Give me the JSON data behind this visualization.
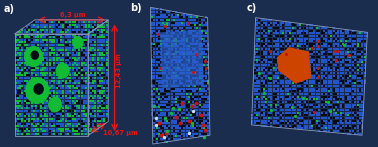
{
  "fig_width": 3.78,
  "fig_height": 1.47,
  "dpi": 100,
  "background_color": "#1b2d4f",
  "panel_labels": [
    "a)",
    "b)",
    "c)"
  ],
  "label_color": "#ffffff",
  "label_fontsize": 7,
  "dim_labels": [
    "6,3 μm",
    "12,43 μm",
    "10,67 μm"
  ],
  "dim_color": "#ee1111",
  "arrow_color": "#ee1111",
  "colors": {
    "blue": "#2255cc",
    "blue2": "#3366dd",
    "green": "#11bb33",
    "black": "#060c14",
    "red": "#cc1111",
    "orange": "#cc4400",
    "white": "#ccddee",
    "dark_bg": "#1b2d4f",
    "face_dark": "#0a1220"
  }
}
